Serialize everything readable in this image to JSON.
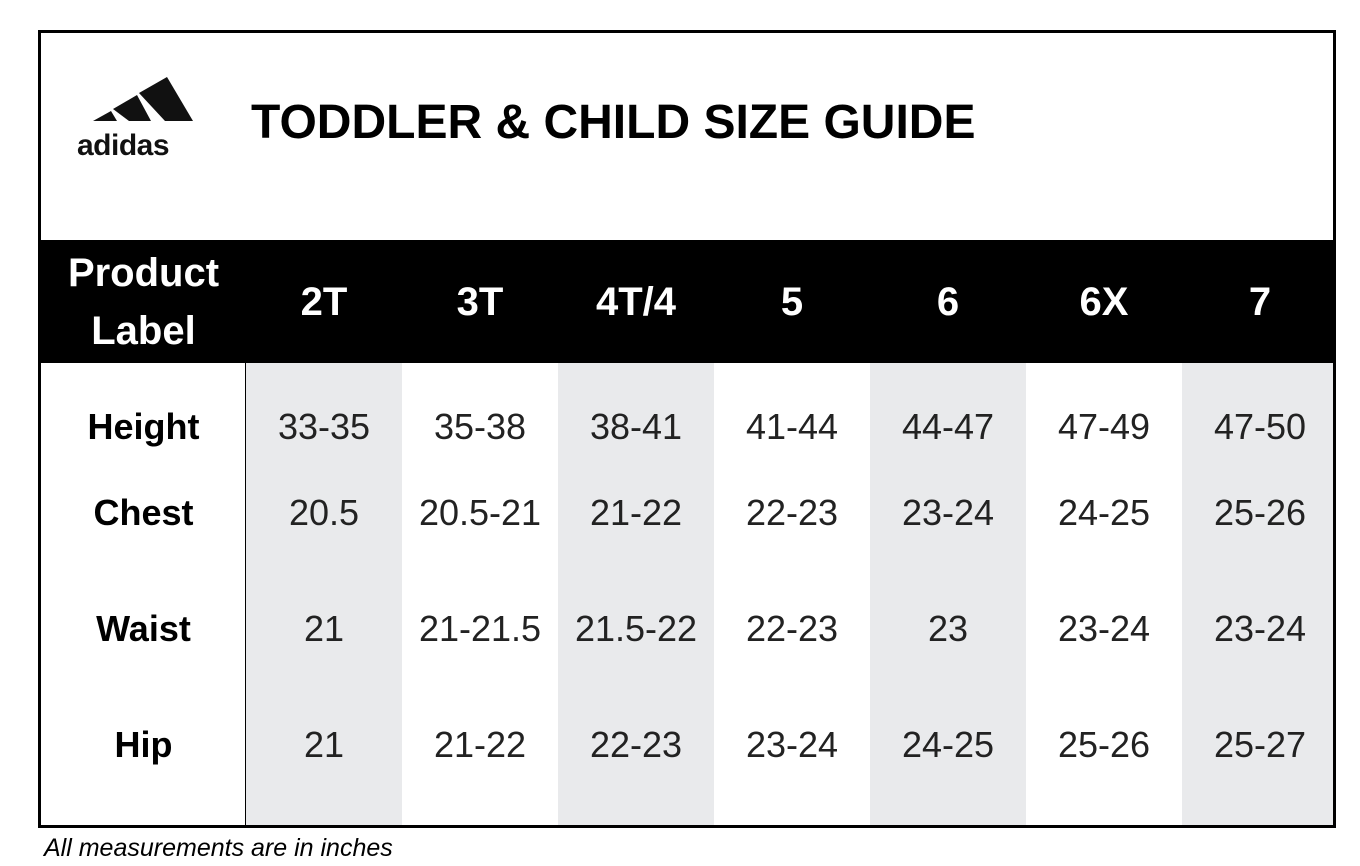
{
  "header": {
    "brand": "adidas",
    "title": "TODDLER & CHILD SIZE GUIDE"
  },
  "table": {
    "columns": [
      "Product Label",
      "2T",
      "3T",
      "4T/4",
      "5",
      "6",
      "6X",
      "7"
    ],
    "rows": [
      [
        "Height",
        "33-35",
        "35-38",
        "38-41",
        "41-44",
        "44-47",
        "47-49",
        "47-50"
      ],
      [
        "Chest",
        "20.5",
        "20.5-21",
        "21-22",
        "22-23",
        "23-24",
        "24-25",
        "25-26"
      ],
      [
        "Waist",
        "21",
        "21-21.5",
        "21.5-22",
        "22-23",
        "23",
        "23-24",
        "23-24"
      ],
      [
        "Hip",
        "21",
        "21-22",
        "22-23",
        "23-24",
        "24-25",
        "25-26",
        "25-27"
      ]
    ]
  },
  "footnote": "All measurements are in inches"
}
